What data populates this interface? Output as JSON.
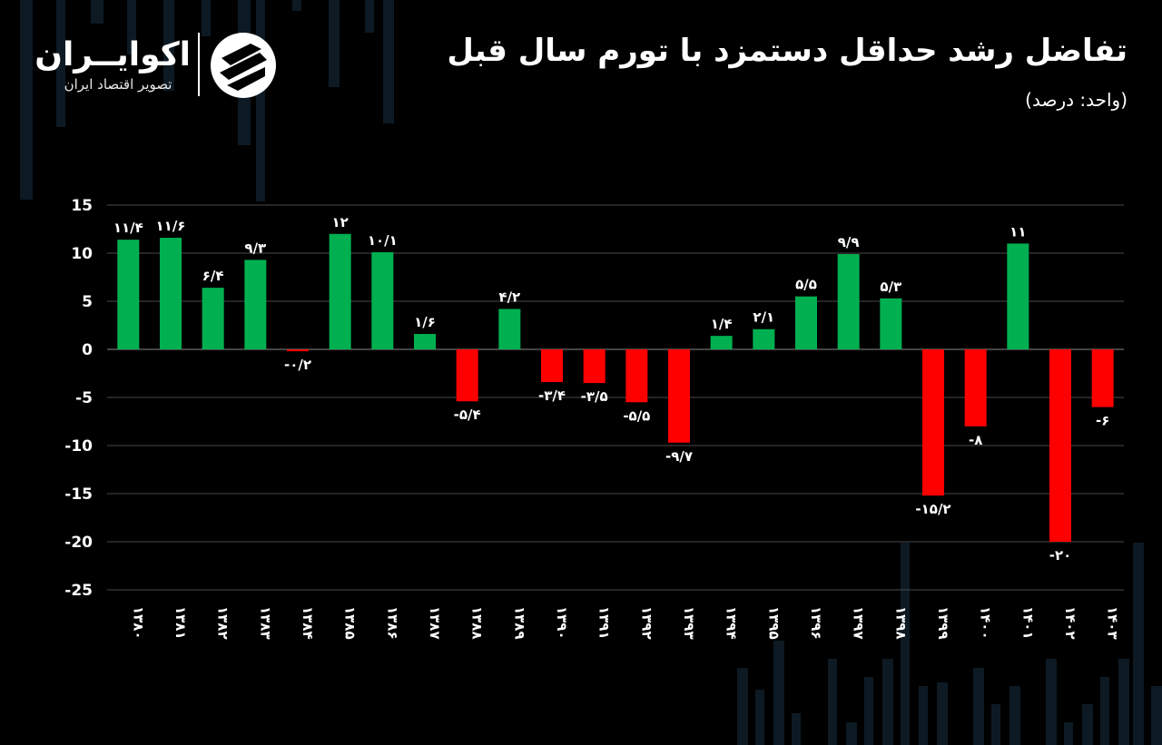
{
  "header": {
    "title": "تفاضل رشد حداقل دستمزد با تورم سال قبل",
    "subtitle": "(واحد: درصد)"
  },
  "brand": {
    "name": "اکوایــران",
    "tagline": "تصویر اقتصاد ایران"
  },
  "colors": {
    "background": "#000000",
    "positive": "#00b050",
    "negative": "#ff0000",
    "grid": "#4a4a4a",
    "deco": "#0d1a24"
  },
  "chart_data": {
    "type": "bar",
    "title": "تفاضل رشد حداقل دستمزد با تورم سال قبل",
    "ylabel": "(واحد: درصد)",
    "xlabel": "",
    "ylim": [
      -25,
      15
    ],
    "yticks": [
      15,
      10,
      5,
      0,
      -5,
      -10,
      -15,
      -20,
      -25
    ],
    "ytick_labels": [
      "15",
      "10",
      "5",
      "0",
      "-5",
      "-10",
      "-15",
      "-20",
      "-25"
    ],
    "grid": true,
    "categories": [
      "۱۳۸۰",
      "۱۳۸۱",
      "۱۳۸۲",
      "۱۳۸۳",
      "۱۳۸۴",
      "۱۳۸۵",
      "۱۳۸۶",
      "۱۳۸۷",
      "۱۳۸۸",
      "۱۳۸۹",
      "۱۳۹۰",
      "۱۳۹۱",
      "۱۳۹۲",
      "۱۳۹۳",
      "۱۳۹۴",
      "۱۳۹۵",
      "۱۳۹۶",
      "۱۳۹۷",
      "۱۳۹۸",
      "۱۳۹۹",
      "۱۴۰۰",
      "۱۴۰۱",
      "۱۴۰۲",
      "۱۴۰۳"
    ],
    "values": [
      11.4,
      11.6,
      6.4,
      9.3,
      -0.2,
      12,
      10.1,
      1.6,
      -5.4,
      4.2,
      -3.4,
      -3.5,
      -5.5,
      -9.7,
      1.4,
      2.1,
      5.5,
      9.9,
      5.3,
      -15.2,
      -8,
      11,
      -20,
      -6
    ],
    "data_labels": [
      "۱۱/۴",
      "۱۱/۶",
      "۶/۴",
      "۹/۳",
      "-۰/۲",
      "۱۲",
      "۱۰/۱",
      "۱/۶",
      "-۵/۴",
      "۴/۲",
      "-۳/۴",
      "-۳/۵",
      "-۵/۵",
      "-۹/۷",
      "۱/۴",
      "۲/۱",
      "۵/۵",
      "۹/۹",
      "۵/۳",
      "-۱۵/۲",
      "-۸",
      "۱۱",
      "-۲۰",
      "-۶"
    ]
  }
}
